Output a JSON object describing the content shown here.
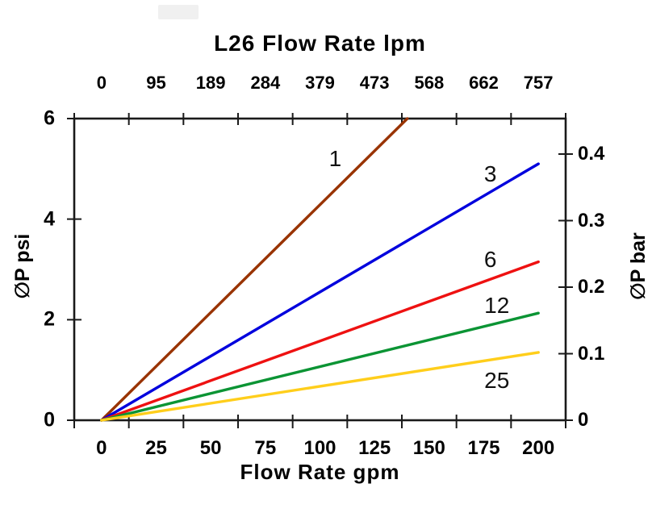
{
  "chart_data": {
    "type": "line",
    "title": "L26 Flow Rate lpm",
    "grid": false,
    "legend": "inline-labels-on-lines",
    "top_axis": {
      "label": "L26 Flow Rate lpm",
      "tick_labels": [
        "0",
        "95",
        "189",
        "284",
        "379",
        "473",
        "568",
        "662",
        "757"
      ],
      "unit": "lpm"
    },
    "bottom_axis": {
      "label": "Flow Rate gpm",
      "tick_labels": [
        "0",
        "25",
        "50",
        "75",
        "100",
        "125",
        "150",
        "175",
        "200"
      ],
      "tick_values": [
        0,
        25,
        50,
        75,
        100,
        125,
        150,
        175,
        200
      ],
      "range": [
        0,
        200
      ],
      "unit": "gpm"
    },
    "left_axis": {
      "label": "∅P psi",
      "tick_labels": [
        "0",
        "2",
        "4",
        "6"
      ],
      "tick_values": [
        0,
        2,
        4,
        6
      ],
      "range": [
        0,
        6
      ],
      "unit": "psi"
    },
    "right_axis": {
      "label": "∅P bar",
      "tick_labels": [
        "0",
        "0.1",
        "0.2",
        "0.3",
        "0.4"
      ],
      "tick_values": [
        0,
        0.1,
        0.2,
        0.3,
        0.4
      ],
      "unit": "bar"
    },
    "axis_color": "#1a1a1a",
    "series": [
      {
        "label": "1",
        "color": "#993300",
        "points": [
          [
            0,
            0
          ],
          [
            140,
            6.0
          ]
        ],
        "label_at": [
          107,
          5.2
        ]
      },
      {
        "label": "3",
        "color": "#0000DD",
        "points": [
          [
            0,
            0
          ],
          [
            200,
            5.1
          ]
        ],
        "label_at": [
          178,
          4.9
        ]
      },
      {
        "label": "6",
        "color": "#EE1111",
        "points": [
          [
            0,
            0
          ],
          [
            200,
            3.15
          ]
        ],
        "label_at": [
          178,
          3.2
        ]
      },
      {
        "label": "12",
        "color": "#0B9434",
        "points": [
          [
            0,
            0
          ],
          [
            200,
            2.13
          ]
        ],
        "label_at": [
          181,
          2.28
        ]
      },
      {
        "label": "25",
        "color": "#FFCE1B",
        "points": [
          [
            0,
            0
          ],
          [
            200,
            1.35
          ]
        ],
        "label_at": [
          181,
          0.79
        ]
      }
    ]
  }
}
